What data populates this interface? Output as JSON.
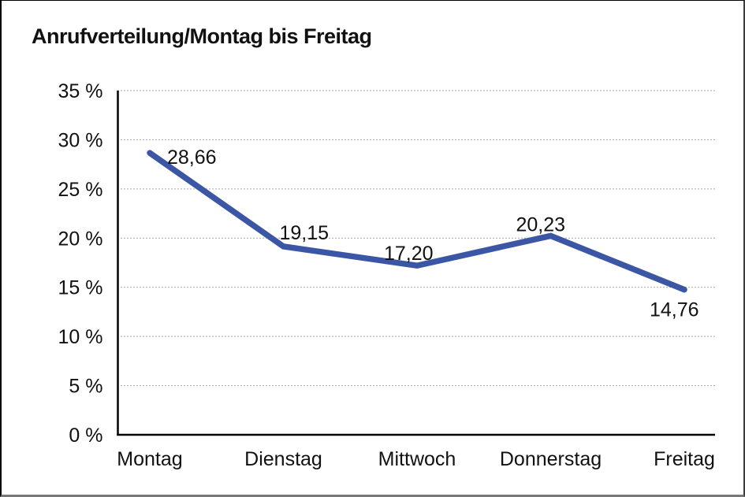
{
  "title": "Anrufverteilung/Montag bis Freitag",
  "chart_data": {
    "type": "line",
    "title": "Anrufverteilung/Montag bis Freitag",
    "categories": [
      "Montag",
      "Dienstag",
      "Mittwoch",
      "Donnerstag",
      "Freitag"
    ],
    "values": [
      28.66,
      19.15,
      17.2,
      20.23,
      14.76
    ],
    "value_labels": [
      "28,66",
      "19,15",
      "17,20",
      "20,23",
      "14,76"
    ],
    "xlabel": "",
    "ylabel": "",
    "ylim": [
      0,
      35
    ],
    "y_ticks": [
      0,
      5,
      10,
      15,
      20,
      25,
      30,
      35
    ],
    "y_tick_labels": [
      "0 %",
      "5 %",
      "10 %",
      "15 %",
      "20 %",
      "25 %",
      "30 %",
      "35 %"
    ],
    "grid": "horizontal-dotted",
    "legend": "none",
    "line_color": "#3A56A5",
    "text_color": "#111111",
    "axis_color": "#000000"
  }
}
